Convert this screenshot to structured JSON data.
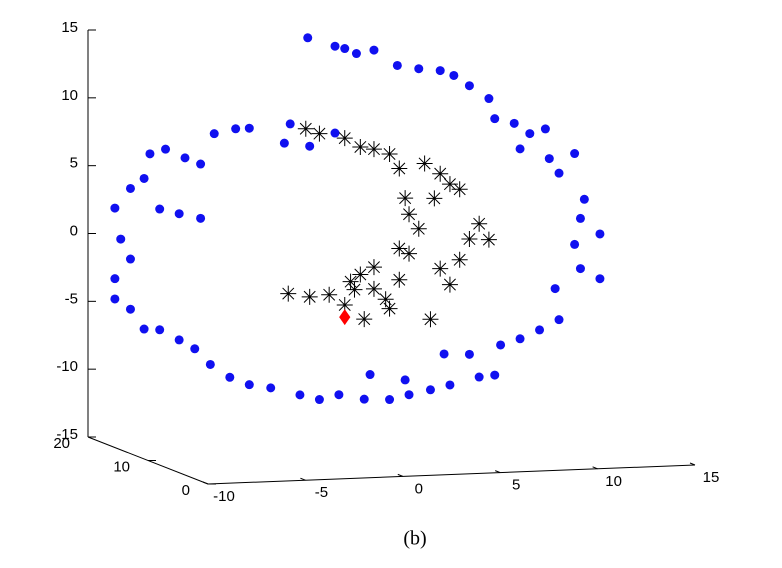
{
  "chart_data": {
    "type": "scatter3d",
    "caption": "(b)",
    "xlim": [
      -10,
      15
    ],
    "xticks": [
      -10,
      -5,
      0,
      5,
      10,
      15
    ],
    "ylim": [
      0,
      20
    ],
    "yticks": [
      0,
      10,
      20
    ],
    "zlim": [
      -15,
      15
    ],
    "zticks": [
      -15,
      -10,
      -5,
      0,
      5,
      10,
      15
    ],
    "series": [
      {
        "color": "#1010f0",
        "marker": "circle",
        "x": [
          -1.8,
          -0.4,
          0.1,
          0.7,
          1.6,
          2.8,
          3.9,
          5.0,
          5.7,
          6.5,
          7.5,
          7.8,
          8.8,
          9.6,
          10.4,
          9.1,
          10.6,
          11.9,
          11.1,
          12.4,
          12.2,
          13.2,
          11.9,
          12.2,
          13.2,
          10.9,
          11.1,
          10.1,
          9.1,
          8.1,
          7.8,
          7.0,
          5.5,
          4.5,
          3.4,
          2.4,
          1.1,
          -0.2,
          -1.2,
          -2.2,
          -3.7,
          -4.8,
          -5.8,
          -6.8,
          -7.6,
          -8.4,
          -9.4,
          -10.2,
          -10.9,
          -11.7,
          -11.7,
          -10.9,
          -11.4,
          -11.7,
          -10.9,
          -10.2,
          -9.4,
          -8.4,
          -7.3,
          -9.9,
          -9.1,
          -8.1,
          -7.3,
          -6.6,
          -5.5,
          -4.8,
          -3.0,
          -2.7,
          -1.7,
          -0.4,
          1.4,
          3.2,
          5.2,
          6.5
        ],
        "y": [
          10,
          10,
          10,
          10,
          10,
          10,
          10,
          10,
          10,
          10,
          10,
          10,
          10,
          10,
          10,
          10,
          10,
          10,
          10,
          10,
          10,
          10,
          10,
          10,
          10,
          10,
          10,
          10,
          10,
          10,
          10,
          10,
          10,
          10,
          10,
          10,
          10,
          10,
          10,
          10,
          10,
          10,
          10,
          10,
          10,
          10,
          10,
          10,
          10,
          10,
          10,
          10,
          10,
          10,
          10,
          10,
          10,
          10,
          10,
          10,
          10,
          10,
          10,
          10,
          10,
          10,
          10,
          10,
          10,
          10,
          10,
          10,
          10,
          10
        ],
        "z": [
          15.7,
          15.0,
          14.8,
          14.4,
          14.6,
          13.4,
          13.1,
          12.9,
          12.5,
          11.7,
          10.7,
          9.2,
          8.8,
          8.0,
          8.3,
          6.9,
          6.1,
          6.4,
          5.0,
          3.0,
          1.6,
          0.4,
          -0.3,
          -2.1,
          -2.9,
          -3.5,
          -5.8,
          -6.5,
          -7.1,
          -7.5,
          -9.7,
          -9.8,
          -10.3,
          -10.6,
          -10.9,
          -11.2,
          -11.1,
          -10.7,
          -11.0,
          -10.6,
          -10.0,
          -9.7,
          -9.1,
          -8.1,
          -6.9,
          -6.2,
          -5.4,
          -5.3,
          -3.8,
          -3.0,
          -1.5,
          -0.1,
          1.4,
          3.7,
          5.1,
          5.8,
          3.5,
          3.1,
          2.7,
          7.6,
          7.9,
          7.2,
          6.7,
          8.9,
          9.2,
          9.2,
          8.0,
          9.4,
          7.7,
          8.6,
          -9.3,
          -9.8,
          -8.0,
          -8.1
        ]
      },
      {
        "color": "#000000",
        "marker": "asterisk",
        "x": [
          -2.8,
          -1.7,
          -0.7,
          0.4,
          0.9,
          1.6,
          2.2,
          1.1,
          2.4,
          2.9,
          3.4,
          3.9,
          5.0,
          5.5,
          6.0,
          6.5,
          7.0,
          7.5,
          4.5,
          2.9,
          3.2,
          3.4,
          4.7,
          5.5,
          6.0,
          5.0,
          4.2,
          2.9,
          2.4,
          1.6,
          0.9,
          0.1,
          -1.2,
          -1.9,
          0.6,
          0.1,
          1.6
        ],
        "y": [
          10,
          10,
          10,
          10,
          10,
          10,
          10,
          10,
          10,
          10,
          10,
          10,
          10,
          10,
          10,
          10,
          10,
          10,
          10,
          10,
          10,
          10,
          10,
          10,
          10,
          10,
          10,
          10,
          10,
          10,
          10,
          10,
          10,
          10,
          10,
          10,
          10
        ],
        "z": [
          -3.1,
          -3.4,
          -3.3,
          -2.4,
          -1.9,
          -1.4,
          -3.8,
          -5.2,
          -4.5,
          -0.1,
          -0.5,
          1.3,
          -1.7,
          -2.9,
          -1.1,
          0.4,
          1.5,
          0.3,
          -5.4,
          -2.4,
          3.6,
          2.4,
          3.5,
          4.5,
          4.1,
          5.3,
          6.1,
          5.8,
          6.9,
          7.3,
          7.5,
          8.2,
          8.6,
          9.0,
          -3.0,
          -4.1,
          -3.0
        ]
      },
      {
        "color": "#ff0000",
        "marker": "diamond",
        "x": [
          0.1
        ],
        "y": [
          10
        ],
        "z": [
          -5.0
        ]
      }
    ]
  }
}
